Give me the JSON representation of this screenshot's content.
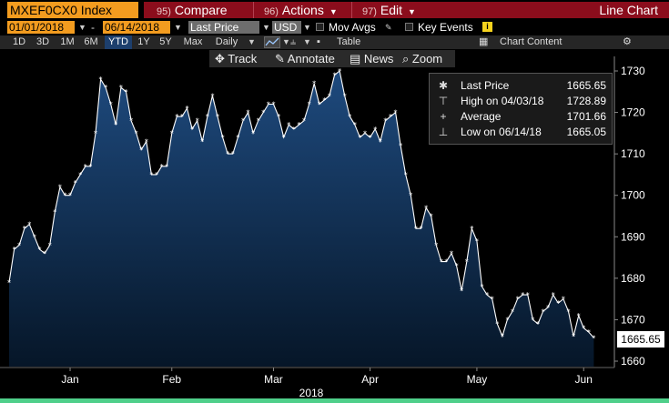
{
  "header": {
    "ticker": "MXEF0CX0 Index",
    "menu": [
      {
        "num": "95)",
        "label": "Compare",
        "caret": false
      },
      {
        "num": "96)",
        "label": "Actions",
        "caret": true
      },
      {
        "num": "97)",
        "label": "Edit",
        "caret": true
      }
    ],
    "chart_type": "Line Chart"
  },
  "controls": {
    "start_date": "01/01/2018",
    "end_date": "06/14/2018",
    "date_sep": "-",
    "field": "Last Price",
    "currency": "USD",
    "mov_avgs": "Mov Avgs",
    "key_events": "Key Events",
    "info_icon": "i"
  },
  "ranges": {
    "items": [
      "1D",
      "3D",
      "1M",
      "6M",
      "YTD",
      "1Y",
      "5Y",
      "Max"
    ],
    "active": "YTD",
    "period": "Daily",
    "table_label": "Table",
    "chart_content": "Chart Content",
    "settings_icon": "⚙"
  },
  "toolbar": {
    "track": "Track",
    "annotate": "Annotate",
    "news": "News",
    "zoom": "Zoom"
  },
  "legend": {
    "rows": [
      {
        "sym": "✱",
        "label": "Last Price",
        "value": "1665.65"
      },
      {
        "sym": "⊤",
        "label": "High on 04/03/18",
        "value": "1728.89"
      },
      {
        "sym": "+",
        "label": "Average",
        "value": "1701.66"
      },
      {
        "sym": "⊥",
        "label": "Low on 06/14/18",
        "value": "1665.05"
      }
    ]
  },
  "price_tag": "1665.65",
  "colors": {
    "accent_orange": "#f39c1f",
    "menu_red": "#8b0d1c",
    "fill_top": "#1e4a7e",
    "fill_bottom": "#061628",
    "line": "#ffffff"
  },
  "chart_data": {
    "type": "area",
    "title": "MXEF0CX0 Index Line Chart",
    "xlabel": "2018",
    "ylabel": "",
    "ylim": [
      1658,
      1732
    ],
    "yticks": [
      1660,
      1670,
      1680,
      1690,
      1700,
      1710,
      1720,
      1730
    ],
    "month_labels": [
      {
        "label": "Jan",
        "x": 12
      },
      {
        "label": "Feb",
        "x": 32
      },
      {
        "label": "Mar",
        "x": 52
      },
      {
        "label": "Apr",
        "x": 71
      },
      {
        "label": "May",
        "x": 92
      },
      {
        "label": "Jun",
        "x": 113
      }
    ],
    "x_range": [
      0,
      116
    ],
    "year": "2018",
    "series": [
      {
        "name": "Last Price",
        "values": [
          1679,
          1687,
          1688,
          1692,
          1693,
          1690,
          1687,
          1686,
          1688,
          1696,
          1702,
          1700,
          1700,
          1703,
          1705,
          1707,
          1707,
          1715,
          1728,
          1726,
          1722,
          1717,
          1726,
          1725,
          1718,
          1715,
          1711,
          1713,
          1705,
          1705,
          1707,
          1707,
          1715,
          1719,
          1719,
          1721,
          1716,
          1718,
          1713,
          1719,
          1724,
          1719,
          1714,
          1710,
          1710,
          1714,
          1718,
          1720,
          1715,
          1718,
          1720,
          1722,
          1722,
          1719,
          1714,
          1717,
          1716,
          1717,
          1718,
          1722,
          1727,
          1722,
          1723,
          1724,
          1729,
          1730,
          1724,
          1719,
          1717,
          1714,
          1715,
          1714,
          1716,
          1713,
          1718,
          1719,
          1720,
          1712,
          1705,
          1700,
          1692,
          1692,
          1697,
          1695,
          1688,
          1684,
          1684,
          1686,
          1683,
          1677,
          1684,
          1692,
          1689,
          1678,
          1676,
          1675,
          1669,
          1666,
          1670,
          1672,
          1675,
          1676,
          1676,
          1670,
          1669,
          1672,
          1673,
          1676,
          1674,
          1675,
          1672,
          1666,
          1671,
          1668,
          1667,
          1665.65
        ]
      }
    ]
  }
}
